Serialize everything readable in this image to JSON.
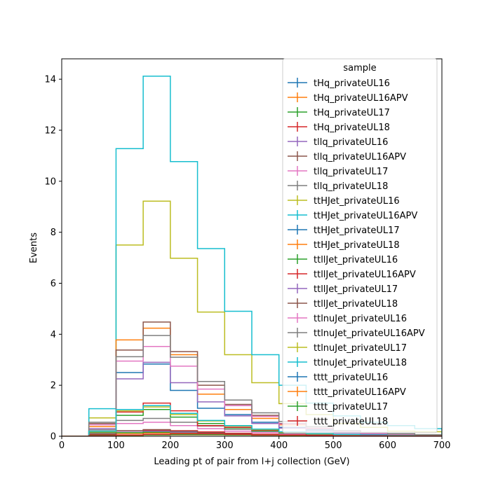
{
  "chart_data": {
    "type": "step-histogram",
    "xlabel": "Leading pt of pair from l+j collection (GeV)",
    "ylabel": "Events",
    "xlim": [
      0,
      700
    ],
    "ylim": [
      0,
      14.8
    ],
    "x_ticks": [
      0,
      100,
      200,
      300,
      400,
      500,
      600,
      700
    ],
    "y_ticks": [
      0,
      2,
      4,
      6,
      8,
      10,
      12,
      14
    ],
    "bin_edges": [
      0,
      50,
      100,
      150,
      200,
      250,
      300,
      350,
      400,
      450,
      500,
      550,
      600,
      650,
      700
    ],
    "legend": {
      "title": "sample",
      "placement": "upper-right"
    },
    "series": [
      {
        "name": "tHq_privateUL16",
        "color": "#1f77b4",
        "values": [
          0,
          0.05,
          0.12,
          0.14,
          0.13,
          0.1,
          0.07,
          0.05,
          0.03,
          0.02,
          0.01,
          0.01,
          0.01,
          0
        ]
      },
      {
        "name": "tHq_privateUL16APV",
        "color": "#ff7f0e",
        "values": [
          0,
          0.05,
          0.11,
          0.13,
          0.12,
          0.09,
          0.07,
          0.05,
          0.03,
          0.02,
          0.01,
          0.01,
          0.01,
          0
        ]
      },
      {
        "name": "tHq_privateUL17",
        "color": "#2ca02c",
        "values": [
          0,
          0.06,
          0.14,
          0.16,
          0.15,
          0.12,
          0.08,
          0.06,
          0.04,
          0.02,
          0.01,
          0.01,
          0.01,
          0
        ]
      },
      {
        "name": "tHq_privateUL18",
        "color": "#d62728",
        "values": [
          0,
          0.08,
          0.2,
          0.24,
          0.22,
          0.17,
          0.12,
          0.08,
          0.05,
          0.03,
          0.02,
          0.01,
          0.01,
          0
        ]
      },
      {
        "name": "tllq_privateUL16",
        "color": "#9467bd",
        "values": [
          0,
          0.1,
          0.2,
          0.2,
          0.16,
          0.11,
          0.08,
          0.05,
          0.03,
          0.02,
          0.01,
          0.01,
          0.01,
          0
        ]
      },
      {
        "name": "tllq_privateUL16APV",
        "color": "#8c564b",
        "values": [
          0,
          0.1,
          0.22,
          0.26,
          0.2,
          0.14,
          0.1,
          0.06,
          0.04,
          0.02,
          0.01,
          0.01,
          0.01,
          0
        ]
      },
      {
        "name": "tllq_privateUL17",
        "color": "#e377c2",
        "values": [
          0,
          0.2,
          0.5,
          0.55,
          0.42,
          0.3,
          0.2,
          0.14,
          0.09,
          0.06,
          0.04,
          0.03,
          0.02,
          0.01
        ]
      },
      {
        "name": "tllq_privateUL18",
        "color": "#7f7f7f",
        "values": [
          0,
          0.25,
          0.62,
          0.7,
          0.55,
          0.4,
          0.27,
          0.19,
          0.12,
          0.08,
          0.05,
          0.03,
          0.02,
          0.01
        ]
      },
      {
        "name": "ttHJet_privateUL16",
        "color": "#bcbd22",
        "values": [
          0,
          0.72,
          7.5,
          9.22,
          6.98,
          4.87,
          3.2,
          2.1,
          1.28,
          0.85,
          0.5,
          0.35,
          0.2,
          0.18
        ]
      },
      {
        "name": "ttHJet_privateUL16APV",
        "color": "#17becf",
        "values": [
          0,
          1.08,
          11.28,
          14.12,
          10.77,
          7.36,
          4.9,
          3.2,
          2.0,
          1.3,
          0.8,
          0.55,
          0.42,
          0.3
        ]
      },
      {
        "name": "ttHJet_privateUL17",
        "color": "#1f77b4",
        "values": [
          0,
          0.2,
          2.5,
          2.83,
          1.8,
          1.1,
          0.85,
          0.55,
          0.35,
          0.25,
          0.15,
          0.1,
          0.06,
          0.04
        ]
      },
      {
        "name": "ttHJet_privateUL18",
        "color": "#ff7f0e",
        "values": [
          0,
          0.38,
          3.78,
          4.24,
          3.2,
          1.65,
          1.05,
          0.7,
          0.45,
          0.3,
          0.2,
          0.12,
          0.08,
          0.05
        ]
      },
      {
        "name": "ttllJet_privateUL16",
        "color": "#2ca02c",
        "values": [
          0,
          0.15,
          0.82,
          1.05,
          0.75,
          0.5,
          0.33,
          0.22,
          0.14,
          0.09,
          0.06,
          0.04,
          0.02,
          0.01
        ]
      },
      {
        "name": "ttllJet_privateUL16APV",
        "color": "#d62728",
        "values": [
          0,
          0.18,
          0.95,
          1.3,
          1.0,
          0.42,
          0.35,
          0.24,
          0.16,
          0.1,
          0.06,
          0.04,
          0.03,
          0.02
        ]
      },
      {
        "name": "ttllJet_privateUL17",
        "color": "#9467bd",
        "values": [
          0,
          0.3,
          2.25,
          2.9,
          2.1,
          1.35,
          0.8,
          0.5,
          0.32,
          0.2,
          0.12,
          0.08,
          0.05,
          0.03
        ]
      },
      {
        "name": "ttllJet_privateUL18",
        "color": "#8c564b",
        "values": [
          0,
          0.5,
          3.38,
          4.48,
          3.32,
          2.0,
          1.25,
          0.82,
          0.5,
          0.32,
          0.2,
          0.12,
          0.08,
          0.05
        ]
      },
      {
        "name": "ttlnuJet_privateUL16",
        "color": "#e377c2",
        "values": [
          0,
          0.45,
          2.95,
          3.52,
          2.75,
          1.85,
          1.2,
          0.78,
          0.48,
          0.3,
          0.18,
          0.12,
          0.08,
          0.05
        ]
      },
      {
        "name": "ttlnuJet_privateUL16APV",
        "color": "#7f7f7f",
        "values": [
          0,
          0.55,
          3.12,
          3.95,
          3.1,
          2.15,
          1.42,
          0.92,
          0.58,
          0.38,
          0.22,
          0.15,
          0.1,
          0.06
        ]
      },
      {
        "name": "ttlnuJet_privateUL17",
        "color": "#bcbd22",
        "values": [
          0,
          0.18,
          1.0,
          1.15,
          0.85,
          0.6,
          0.4,
          0.26,
          0.16,
          0.1,
          0.06,
          0.04,
          0.03,
          0.02
        ]
      },
      {
        "name": "ttlnuJet_privateUL18",
        "color": "#17becf",
        "values": [
          0,
          0.2,
          1.05,
          1.2,
          0.9,
          0.62,
          0.42,
          0.28,
          0.18,
          0.11,
          0.07,
          0.05,
          0.03,
          0.02
        ]
      },
      {
        "name": "tttt_privateUL16",
        "color": "#1f77b4",
        "values": [
          0,
          0.01,
          0.03,
          0.05,
          0.06,
          0.06,
          0.05,
          0.04,
          0.03,
          0.02,
          0.02,
          0.01,
          0.01,
          0.01
        ]
      },
      {
        "name": "tttt_privateUL16APV",
        "color": "#ff7f0e",
        "values": [
          0,
          0.01,
          0.03,
          0.05,
          0.06,
          0.06,
          0.05,
          0.04,
          0.03,
          0.02,
          0.02,
          0.01,
          0.01,
          0.01
        ]
      },
      {
        "name": "tttt_privateUL17",
        "color": "#2ca02c",
        "values": [
          0,
          0.01,
          0.04,
          0.06,
          0.07,
          0.07,
          0.06,
          0.05,
          0.04,
          0.03,
          0.02,
          0.01,
          0.01,
          0.01
        ]
      },
      {
        "name": "tttt_privateUL18",
        "color": "#d62728",
        "values": [
          0,
          0.02,
          0.05,
          0.08,
          0.1,
          0.1,
          0.08,
          0.06,
          0.05,
          0.03,
          0.02,
          0.02,
          0.01,
          0.01
        ]
      }
    ]
  }
}
